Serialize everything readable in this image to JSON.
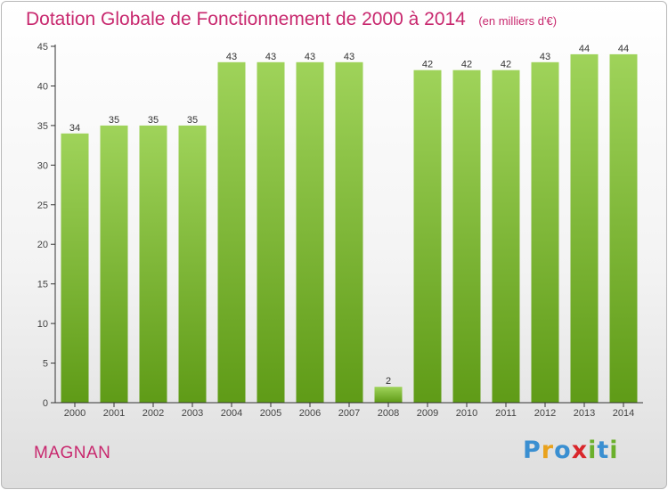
{
  "title": "Dotation Globale de Fonctionnement de 2000 à 2014",
  "subtitle": "(en milliers d'€)",
  "commune": "MAGNAN",
  "brand": {
    "letters": [
      "P",
      "r",
      "o",
      "x",
      "i",
      "t",
      "i"
    ],
    "colors": [
      "#3a8fd1",
      "#e9a21d",
      "#3a8fd1",
      "#d9262b",
      "#6bb02c",
      "#3a8fd1",
      "#6bb02c"
    ]
  },
  "colors": {
    "title": "#c8286e",
    "bar_light": "#9fd35a",
    "bar_dark": "#5f9b17",
    "axis": "#333333"
  },
  "chart_data": {
    "type": "bar",
    "title": "Dotation Globale de Fonctionnement de 2000 à 2014",
    "subtitle": "(en milliers d'€)",
    "xlabel": "",
    "ylabel": "",
    "categories": [
      "2000",
      "2001",
      "2002",
      "2003",
      "2004",
      "2005",
      "2006",
      "2007",
      "2008",
      "2009",
      "2010",
      "2011",
      "2012",
      "2013",
      "2014"
    ],
    "values": [
      34,
      35,
      35,
      35,
      43,
      43,
      43,
      43,
      2,
      42,
      42,
      42,
      43,
      44,
      44
    ],
    "ylim": [
      0,
      45
    ],
    "yticks": [
      0,
      5,
      10,
      15,
      20,
      25,
      30,
      35,
      40,
      45
    ],
    "grid": false,
    "legend": "none",
    "data_labels": true
  }
}
